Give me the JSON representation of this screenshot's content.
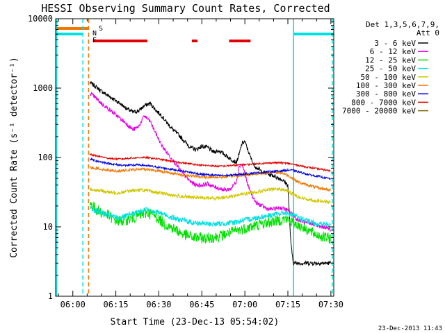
{
  "chart_data": {
    "type": "line",
    "title": "HESSI Observing Summary Count Rates, Corrected",
    "xlabel": "Start Time (23-Dec-13 05:54:02)",
    "ylabel": "Corrected Count Rate (s⁻¹ detector⁻¹)",
    "x_unit": "minutes since 05:54:02 UT",
    "xlim": [
      0,
      97
    ],
    "ylim": [
      1,
      10000
    ],
    "y_scale": "log",
    "x_ticks": [
      {
        "x": 6,
        "label": "06:00"
      },
      {
        "x": 21,
        "label": "06:15"
      },
      {
        "x": 36,
        "label": "06:30"
      },
      {
        "x": 51,
        "label": "06:45"
      },
      {
        "x": 66,
        "label": "07:00"
      },
      {
        "x": 81,
        "label": "07:15"
      },
      {
        "x": 96,
        "label": "07:30"
      }
    ],
    "y_ticks": [
      {
        "y": 1,
        "label": "1"
      },
      {
        "y": 10,
        "label": "10"
      },
      {
        "y": 100,
        "label": "100"
      },
      {
        "y": 1000,
        "label": "1000"
      },
      {
        "y": 10000,
        "label": "10000"
      }
    ],
    "legend": {
      "placement": "right",
      "header": [
        "Det 1,3,5,6,7,9,",
        "Att 0"
      ]
    },
    "flag_labels": {
      "saa": "S",
      "night": "N",
      "flare": "F"
    },
    "flags": {
      "saa": {
        "color": "#f07800",
        "intervals": [
          [
            0,
            11.5
          ]
        ]
      },
      "night": {
        "color": "#00e0e0",
        "intervals": [
          [
            0,
            9.5
          ],
          [
            83,
            97
          ]
        ]
      },
      "flare": {
        "color": "#e00000",
        "intervals": [
          [
            13,
            32
          ],
          [
            47.5,
            49.5
          ],
          [
            60.5,
            68
          ]
        ]
      }
    },
    "vlines": [
      {
        "x": 0.4,
        "color": "#00e0e0",
        "dashed": false
      },
      {
        "x": 9.5,
        "color": "#00e0e0",
        "dashed": true
      },
      {
        "x": 11.5,
        "color": "#f07800",
        "dashed": true
      },
      {
        "x": 83,
        "color": "#00e0e0",
        "dashed": false
      },
      {
        "x": 96.5,
        "color": "#00e0e0",
        "dashed": true
      }
    ],
    "series": [
      {
        "name": "3 - 6 keV",
        "color": "#000000",
        "noise": 0.03,
        "x": [
          12,
          14,
          16,
          19,
          22,
          25,
          27,
          29,
          31,
          33,
          35,
          37,
          39,
          41,
          43,
          45,
          47,
          49,
          51,
          53,
          55,
          57,
          59,
          61,
          63,
          64,
          65,
          66,
          67,
          68,
          69,
          70,
          71,
          72,
          73,
          74,
          75,
          76,
          77,
          78,
          79,
          80,
          81,
          82,
          82.5,
          83,
          85,
          88,
          91,
          94,
          96
        ],
        "values": [
          1200,
          1050,
          900,
          750,
          620,
          500,
          450,
          470,
          560,
          600,
          480,
          400,
          310,
          250,
          210,
          170,
          140,
          130,
          145,
          140,
          120,
          125,
          110,
          95,
          85,
          110,
          160,
          170,
          130,
          100,
          80,
          72,
          68,
          62,
          60,
          58,
          56,
          55,
          52,
          50,
          48,
          44,
          40,
          6,
          4,
          3,
          3,
          3,
          3,
          3,
          3
        ]
      },
      {
        "name": "6 - 12 keV",
        "color": "#e000e0",
        "noise": 0.03,
        "x": [
          12,
          14,
          16,
          19,
          22,
          25,
          27,
          29,
          31,
          33,
          35,
          37,
          39,
          41,
          43,
          45,
          47,
          49,
          51,
          53,
          55,
          57,
          59,
          61,
          63,
          64,
          65,
          66,
          67,
          68,
          69,
          70,
          72,
          74,
          76,
          78,
          80,
          82,
          84,
          86,
          88,
          90,
          92,
          94,
          96
        ],
        "values": [
          850,
          720,
          600,
          480,
          380,
          300,
          250,
          280,
          400,
          330,
          220,
          150,
          115,
          90,
          70,
          55,
          45,
          40,
          40,
          42,
          38,
          36,
          34,
          35,
          45,
          75,
          80,
          60,
          40,
          32,
          26,
          22,
          20,
          18,
          18,
          19,
          18,
          16,
          13,
          12,
          11,
          11,
          10,
          10,
          9
        ]
      },
      {
        "name": "12 - 25 keV",
        "color": "#00e000",
        "noise": 0.08,
        "x": [
          12,
          14,
          16,
          18,
          20,
          22,
          24,
          26,
          28,
          30,
          32,
          34,
          36,
          38,
          40,
          42,
          44,
          46,
          48,
          50,
          52,
          54,
          56,
          58,
          60,
          62,
          64,
          66,
          68,
          70,
          72,
          74,
          76,
          78,
          80,
          82,
          84,
          86,
          88,
          90,
          92,
          94,
          96
        ],
        "values": [
          22,
          18,
          16,
          15,
          13,
          12,
          12.5,
          13,
          14,
          15,
          16,
          15,
          13,
          11,
          10,
          9,
          8,
          7.5,
          7,
          7,
          6.8,
          7,
          7.2,
          7.5,
          8,
          8.5,
          9,
          9.5,
          10,
          10.5,
          11,
          11.5,
          12,
          12.5,
          13,
          12,
          11,
          10,
          9,
          8,
          7.5,
          7,
          6.8
        ]
      },
      {
        "name": "25 - 50 keV",
        "color": "#00e0e0",
        "noise": 0.04,
        "x": [
          12,
          14,
          16,
          18,
          20,
          22,
          24,
          26,
          28,
          30,
          32,
          34,
          36,
          38,
          40,
          42,
          44,
          46,
          48,
          50,
          52,
          54,
          56,
          58,
          60,
          62,
          64,
          66,
          68,
          70,
          72,
          74,
          76,
          78,
          80,
          82,
          84,
          86,
          88,
          90,
          92,
          94,
          96
        ],
        "values": [
          19,
          17,
          16,
          15,
          14,
          13.5,
          14,
          15,
          16,
          17,
          18,
          17,
          16,
          15,
          14,
          13,
          12.5,
          12,
          11.5,
          11.3,
          11.1,
          11,
          11,
          11.1,
          11.3,
          11.6,
          12,
          12.5,
          13,
          13.5,
          14,
          14.5,
          15,
          15.5,
          16,
          15,
          14,
          13,
          12,
          11.5,
          11,
          10.8,
          10.5
        ]
      },
      {
        "name": "50 - 100 keV",
        "color": "#d0c800",
        "noise": 0.025,
        "x": [
          12,
          14,
          16,
          18,
          20,
          22,
          24,
          26,
          28,
          30,
          32,
          34,
          36,
          38,
          40,
          42,
          44,
          46,
          48,
          50,
          52,
          54,
          56,
          58,
          60,
          62,
          64,
          66,
          68,
          70,
          72,
          74,
          76,
          78,
          80,
          82,
          84,
          86,
          88,
          90,
          92,
          94,
          96
        ],
        "values": [
          35,
          34,
          33,
          32,
          31,
          31,
          32,
          33,
          34,
          34,
          33,
          32,
          31,
          30,
          29,
          28,
          27.5,
          27,
          26.5,
          26.5,
          26,
          26,
          26,
          26.5,
          27,
          28,
          29,
          30,
          31,
          32,
          33,
          34,
          35,
          35,
          34,
          31,
          28,
          26,
          25,
          24,
          23.5,
          23,
          22.5
        ]
      },
      {
        "name": "100 - 300 keV",
        "color": "#f07800",
        "noise": 0.02,
        "x": [
          12,
          14,
          16,
          18,
          20,
          22,
          24,
          26,
          28,
          30,
          32,
          34,
          36,
          38,
          40,
          42,
          44,
          46,
          48,
          50,
          52,
          54,
          56,
          58,
          60,
          62,
          64,
          66,
          68,
          70,
          72,
          74,
          76,
          78,
          80,
          82,
          84,
          86,
          88,
          90,
          92,
          94,
          96
        ],
        "values": [
          72,
          70,
          68,
          66,
          65,
          64,
          65,
          66,
          67,
          68,
          67,
          66,
          64,
          62,
          60,
          58,
          56,
          55,
          54,
          53,
          52,
          52,
          52,
          52,
          53,
          54,
          55,
          56,
          57,
          58,
          59,
          60,
          61,
          61,
          58,
          52,
          46,
          42,
          40,
          38,
          36,
          35,
          34
        ]
      },
      {
        "name": "300 - 800 keV",
        "color": "#0000e0",
        "noise": 0.015,
        "x": [
          12,
          14,
          16,
          18,
          20,
          22,
          24,
          26,
          28,
          30,
          32,
          34,
          36,
          38,
          40,
          42,
          44,
          46,
          48,
          50,
          52,
          54,
          56,
          58,
          60,
          62,
          64,
          66,
          68,
          70,
          72,
          74,
          76,
          78,
          80,
          82,
          84,
          86,
          88,
          90,
          92,
          94,
          96
        ],
        "values": [
          95,
          90,
          86,
          83,
          80,
          78,
          77,
          77,
          78,
          78,
          76,
          74,
          72,
          70,
          68,
          66,
          64,
          62,
          60,
          58,
          57,
          56,
          55,
          55,
          55,
          56,
          57,
          58,
          59,
          60,
          61,
          62,
          63,
          64,
          65,
          66,
          63,
          60,
          57,
          55,
          53,
          51,
          49
        ]
      },
      {
        "name": "800 - 7000 keV",
        "color": "#e00000",
        "noise": 0.012,
        "x": [
          12,
          14,
          16,
          18,
          20,
          22,
          24,
          26,
          28,
          30,
          32,
          34,
          36,
          38,
          40,
          42,
          44,
          46,
          48,
          50,
          52,
          54,
          56,
          58,
          60,
          62,
          64,
          66,
          68,
          70,
          72,
          74,
          76,
          78,
          80,
          82,
          84,
          86,
          88,
          90,
          92,
          94,
          96
        ],
        "values": [
          110,
          106,
          102,
          98,
          96,
          95,
          96,
          98,
          99,
          100,
          99,
          97,
          95,
          92,
          89,
          86,
          84,
          82,
          80,
          78,
          77,
          76,
          75,
          75,
          76,
          77,
          78,
          79,
          80,
          81,
          82,
          83,
          84,
          84,
          83,
          81,
          78,
          75,
          72,
          70,
          68,
          66,
          64
        ]
      },
      {
        "name": "7000 - 20000 keV",
        "color": "#806000",
        "noise": 0,
        "x": [],
        "values": []
      }
    ]
  },
  "footer": {
    "timestamp": "23-Dec-2013 11:43"
  }
}
